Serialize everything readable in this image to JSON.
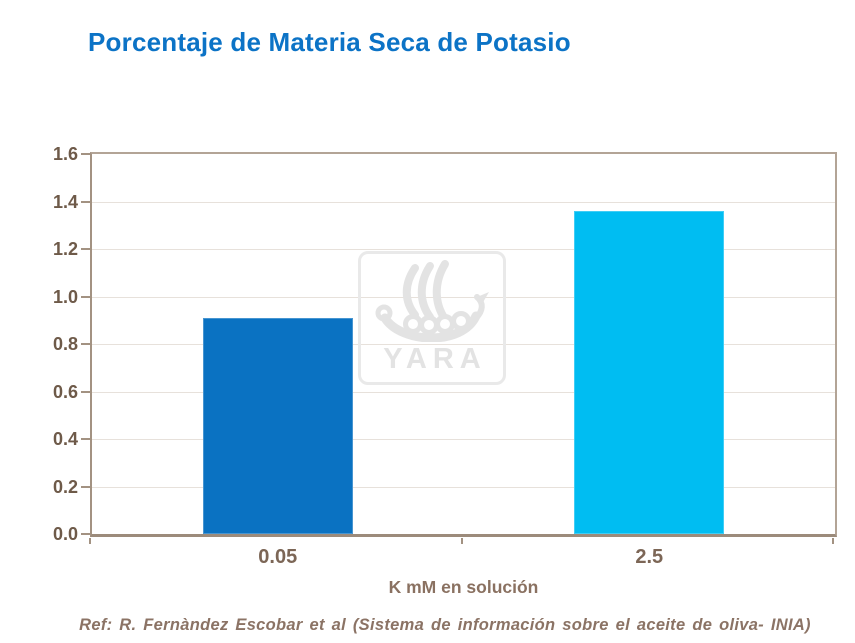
{
  "page": {
    "title": "Porcentaje de Materia Seca de Potasio"
  },
  "reference": "Ref: R. Fernàndez Escobar et al (Sistema de información sobre el aceite de oliva- INIA)",
  "watermark": {
    "brand": "YARA",
    "icon": "yara-viking-ship-logo"
  },
  "chart_data": {
    "type": "bar",
    "title": "Porcentaje de Materia Seca de Potasio",
    "categories": [
      "0.05",
      "2.5"
    ],
    "values": [
      0.91,
      1.36
    ],
    "bar_colors": [
      "#0a72c2",
      "#00bdf2"
    ],
    "xlabel": "K mM en solución",
    "ylabel": "",
    "ylim": [
      0,
      1.6
    ],
    "ytick_step": 0.2,
    "yticks": [
      "0.0",
      "0.2",
      "0.4",
      "0.6",
      "0.8",
      "1.0",
      "1.2",
      "1.4",
      "1.6"
    ],
    "grid": "horizontal",
    "legend": "none",
    "colors": {
      "title_text": "#0c73c6",
      "axis_border": "#b3a496",
      "axis_line": "#9c8b7b",
      "gridline": "#e7e1db",
      "y_tick_label": "#6e5a49",
      "x_tick_label": "#7c6656",
      "axis_title_text": "#8a7161",
      "reference_text": "#8b7365",
      "watermark": "#e5e5e5"
    }
  }
}
